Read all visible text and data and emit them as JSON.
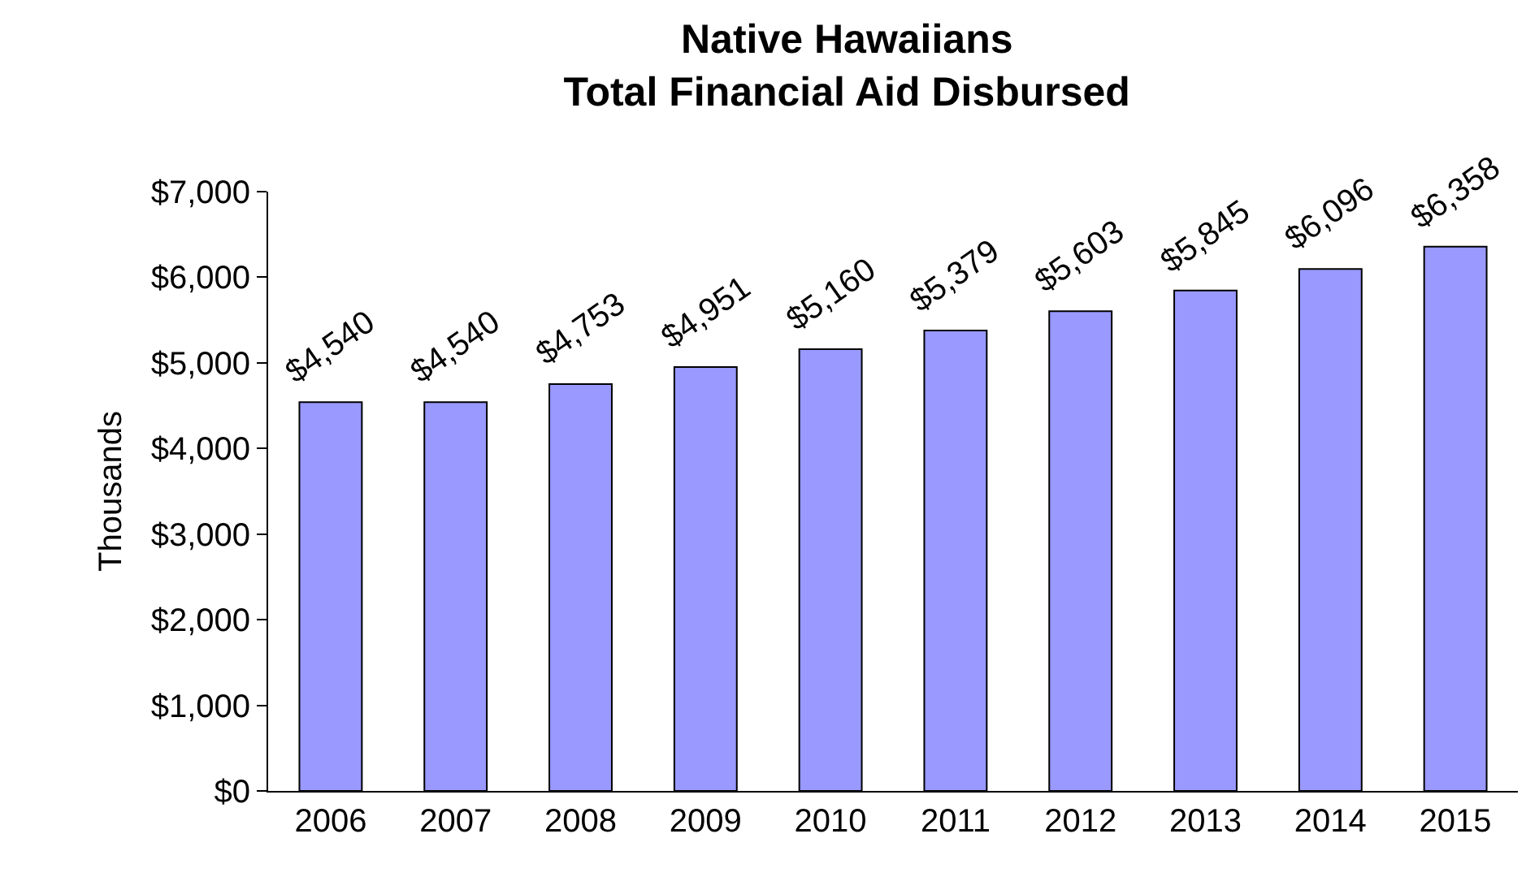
{
  "chart_data": {
    "type": "bar",
    "title": "Native Hawaiians\nTotal Financial Aid Disbursed",
    "ylabel": "Thousands",
    "categories": [
      "2006",
      "2007",
      "2008",
      "2009",
      "2010",
      "2011",
      "2012",
      "2013",
      "2014",
      "2015"
    ],
    "values": [
      4540,
      4540,
      4753,
      4951,
      5160,
      5379,
      5603,
      5845,
      6096,
      6358
    ],
    "value_labels": [
      "$4,540",
      "$4,540",
      "$4,753",
      "$4,951",
      "$5,160",
      "$5,379",
      "$5,603",
      "$5,845",
      "$6,096",
      "$6,358"
    ],
    "color": "#9999ff",
    "ylim": [
      0,
      7000
    ],
    "yticks": [
      {
        "value": 0,
        "label": "$0"
      },
      {
        "value": 1000,
        "label": "$1,000"
      },
      {
        "value": 2000,
        "label": "$2,000"
      },
      {
        "value": 3000,
        "label": "$3,000"
      },
      {
        "value": 4000,
        "label": "$4,000"
      },
      {
        "value": 5000,
        "label": "$5,000"
      },
      {
        "value": 6000,
        "label": "$6,000"
      },
      {
        "value": 7000,
        "label": "$7,000"
      }
    ],
    "legend": false
  }
}
